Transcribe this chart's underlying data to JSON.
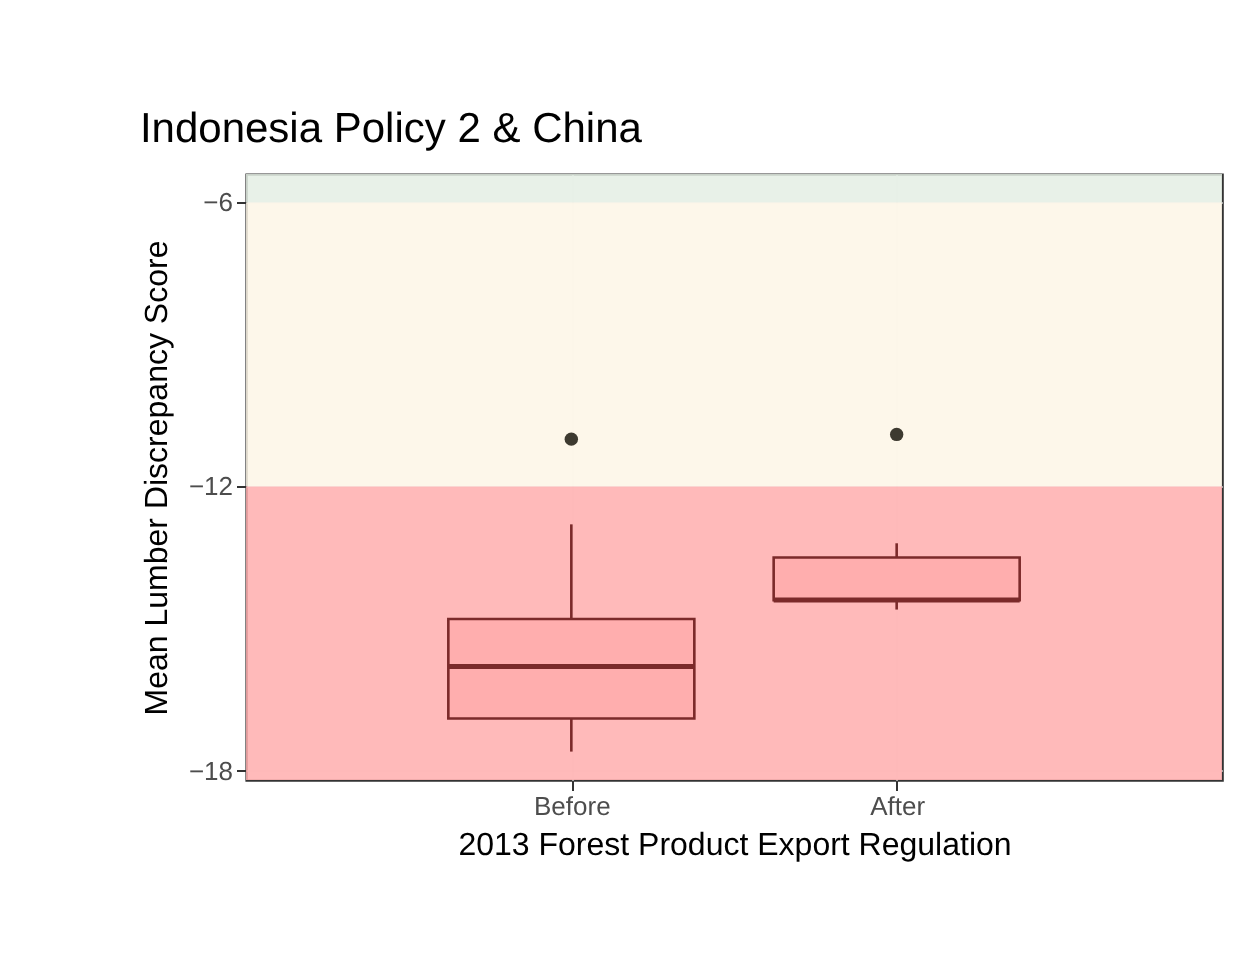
{
  "chart_data": {
    "type": "box",
    "title": "Indonesia Policy 2 & China",
    "xlabel": "2013 Forest Product Export Regulation",
    "ylabel": "Mean Lumber Discrepancy Score",
    "categories": [
      "Before",
      "After"
    ],
    "boxes": [
      {
        "low": -17.6,
        "q1": -16.9,
        "median": -15.8,
        "q3": -14.8,
        "high": -12.8,
        "outliers": [
          -11.0
        ]
      },
      {
        "low": -14.6,
        "q1": -14.4,
        "median": -14.4,
        "q3": -13.5,
        "high": -13.2,
        "outliers": [
          -10.9
        ]
      }
    ],
    "color": "#7b2a2a",
    "ylim": [
      -18.2,
      -5.4
    ],
    "yticks": [
      -6,
      -12,
      -18
    ],
    "grid": true,
    "bands": [
      {
        "axis": "y",
        "from": -6,
        "to": -5.4,
        "color": "#e4efe4"
      },
      {
        "axis": "y",
        "from": -12,
        "to": -6,
        "color": "#fdf6e6"
      },
      {
        "axis": "y",
        "from": -18.2,
        "to": -12,
        "color": "#ffaeae"
      }
    ]
  }
}
